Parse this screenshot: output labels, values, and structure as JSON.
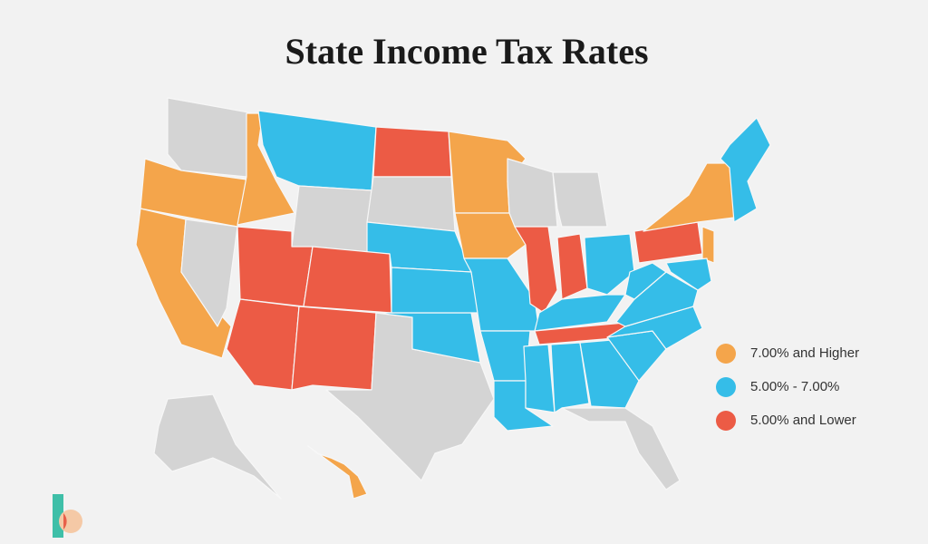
{
  "title": "State Income Tax Rates",
  "legend": [
    {
      "label": "7.00% and Higher",
      "color": "#f4a54b"
    },
    {
      "label": "5.00% - 7.00%",
      "color": "#35bde8"
    },
    {
      "label": "5.00% and Lower",
      "color": "#ec5b45"
    }
  ]
}
